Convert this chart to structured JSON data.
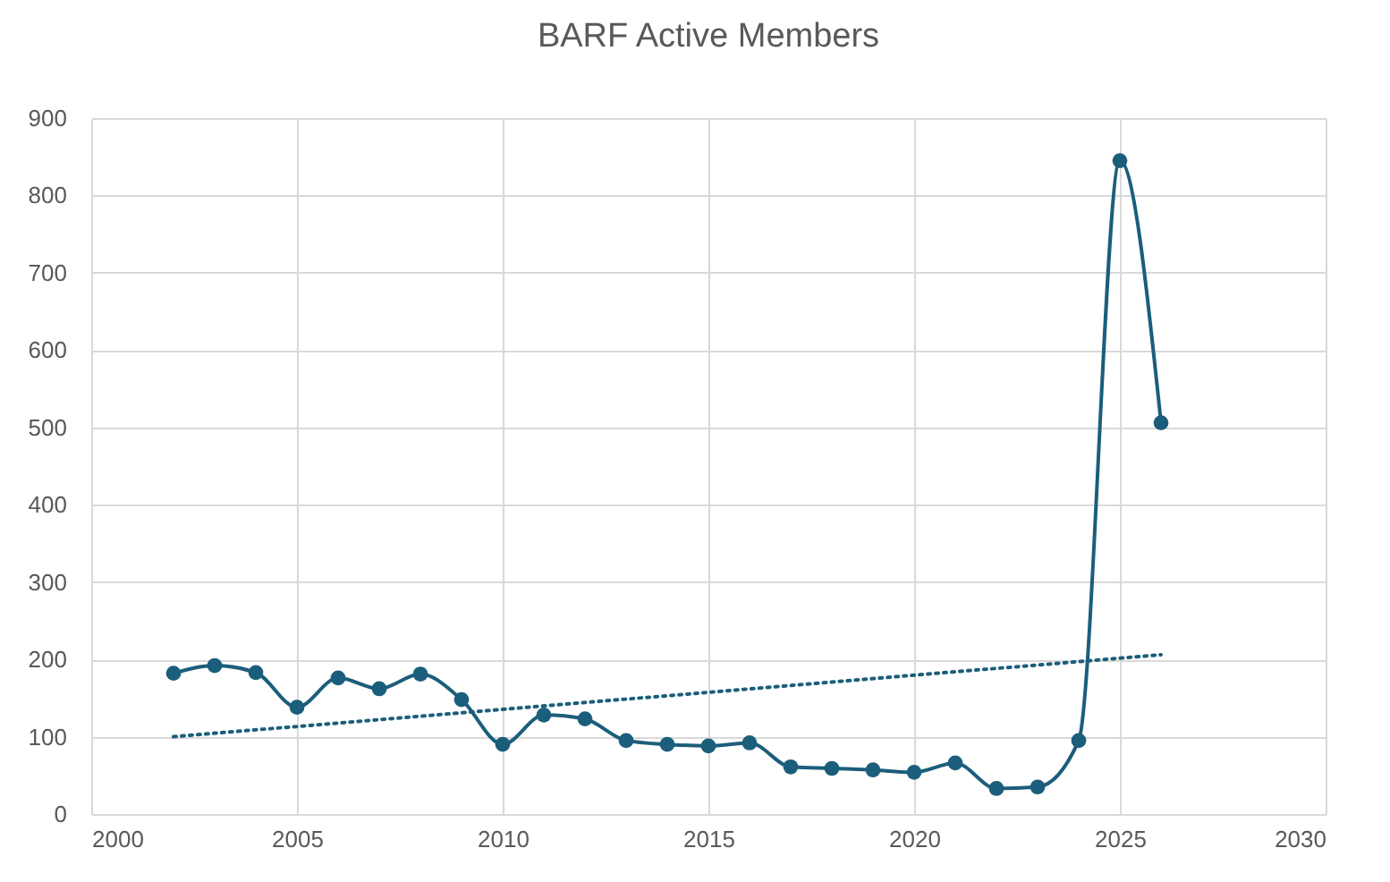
{
  "chart_data": {
    "type": "line",
    "title": "BARF Active Members",
    "xlim": [
      2000,
      2030
    ],
    "xticks": [
      2000,
      2005,
      2010,
      2015,
      2020,
      2025,
      2030
    ],
    "ylim": [
      0,
      900
    ],
    "yticks": [
      0,
      100,
      200,
      300,
      400,
      500,
      600,
      700,
      800,
      900
    ],
    "grid": true,
    "marker": "circle",
    "line_style": "solid",
    "series": [
      {
        "color": "#1b5e7b",
        "x": [
          2002,
          2003,
          2004,
          2005,
          2006,
          2007,
          2008,
          2009,
          2010,
          2011,
          2012,
          2013,
          2014,
          2015,
          2016,
          2017,
          2018,
          2019,
          2020,
          2021,
          2022,
          2023,
          2024,
          2025,
          2026
        ],
        "values": [
          182,
          192,
          183,
          138,
          176,
          162,
          181,
          148,
          90,
          128,
          123,
          95,
          90,
          88,
          92,
          61,
          59,
          57,
          54,
          66,
          33,
          35,
          95,
          845,
          506
        ]
      },
      {
        "type": "line",
        "color": "#1b5e7b",
        "marker": "none",
        "line_style": "dotted",
        "x": [
          2002,
          2026
        ],
        "values": [
          100,
          206
        ]
      }
    ]
  }
}
